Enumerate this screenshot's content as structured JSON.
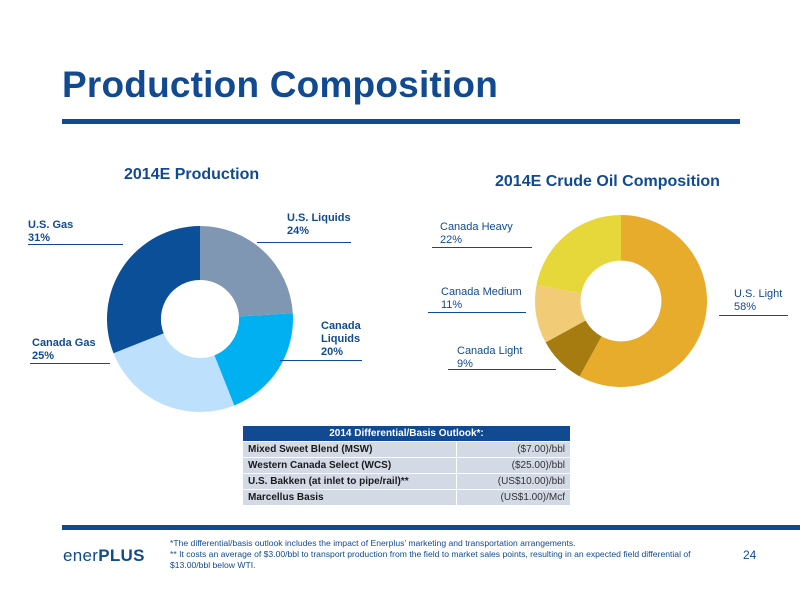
{
  "page": {
    "title": "Production Composition",
    "page_number": "24"
  },
  "chart_data": [
    {
      "type": "pie",
      "title": "2014E Production",
      "categories": [
        "U.S. Liquids",
        "Canada Liquids",
        "Canada Gas",
        "U.S. Gas"
      ],
      "values": [
        24,
        20,
        25,
        31
      ],
      "labels": [
        "24%",
        "20%",
        "25%",
        "31%"
      ],
      "colors": [
        "#8097b3",
        "#00b0f0",
        "#bde0fd",
        "#0a4f98"
      ],
      "donut": true
    },
    {
      "type": "pie",
      "title": "2014E Crude Oil Composition",
      "categories": [
        "U.S. Light",
        "Canada Light",
        "Canada Medium",
        "Canada Heavy"
      ],
      "values": [
        58,
        9,
        11,
        22
      ],
      "labels": [
        "58%",
        "9%",
        "11%",
        "22%"
      ],
      "colors": [
        "#e8ac2d",
        "#a67c11",
        "#f1cb76",
        "#e6d83b"
      ],
      "donut": true
    }
  ],
  "table": {
    "header": "2014 Differential/Basis Outlook*:",
    "rows": [
      {
        "name": "Mixed Sweet Blend (MSW)",
        "value": "($7.00)/bbl"
      },
      {
        "name": "Western Canada Select (WCS)",
        "value": "($25.00)/bbl"
      },
      {
        "name": "U.S. Bakken (at inlet to pipe/rail)**",
        "value": "(US$10.00)/bbl"
      },
      {
        "name": "Marcellus Basis",
        "value": "(US$1.00)/Mcf"
      }
    ]
  },
  "footnotes": {
    "note1": "*The differential/basis outlook includes the impact of Enerplus’ marketing and transportation arrangements.",
    "note2": "** It costs an average of $3.00/bbl to transport production from the field to market sales points, resulting in an expected field differential of $13.00/bbl below WTI."
  },
  "logo": {
    "part1": "ener",
    "part2": "PLUS",
    "color": "#114a90"
  }
}
